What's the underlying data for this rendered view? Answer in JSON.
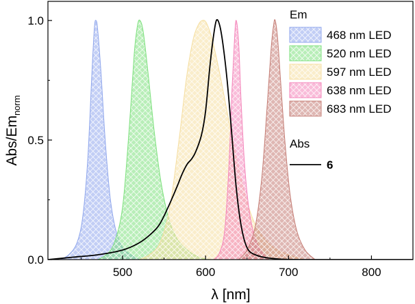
{
  "chart_data": {
    "type": "area",
    "title": "",
    "xlabel": "λ [nm]",
    "ylabel": {
      "main": "Abs/Em",
      "sub": "norm"
    },
    "xlim": [
      410,
      850
    ],
    "ylim": [
      0,
      1.08
    ],
    "xticks": [
      500,
      600,
      700,
      800
    ],
    "xtick_labels": [
      "500",
      "600",
      "700",
      "800"
    ],
    "yticks": [
      0.0,
      0.5,
      1.0
    ],
    "ytick_labels": [
      "0.0",
      "0.5",
      "1.0"
    ],
    "legend": {
      "placement": "top-right",
      "em_title": "Em",
      "abs_title": "Abs",
      "abs_entry": "6"
    },
    "series": [
      {
        "name": "468 nm LED",
        "kind": "emission",
        "color": "#8fa6ec",
        "points": [
          [
            425,
            0.0
          ],
          [
            435,
            0.02
          ],
          [
            445,
            0.07
          ],
          [
            452,
            0.18
          ],
          [
            458,
            0.42
          ],
          [
            463,
            0.78
          ],
          [
            466,
            0.97
          ],
          [
            468,
            1.0
          ],
          [
            470,
            0.96
          ],
          [
            474,
            0.78
          ],
          [
            479,
            0.5
          ],
          [
            485,
            0.26
          ],
          [
            492,
            0.12
          ],
          [
            500,
            0.05
          ],
          [
            510,
            0.02
          ],
          [
            520,
            0.0
          ]
        ]
      },
      {
        "name": "520 nm LED",
        "kind": "emission",
        "color": "#7de07d",
        "points": [
          [
            470,
            0.0
          ],
          [
            480,
            0.02
          ],
          [
            490,
            0.07
          ],
          [
            500,
            0.22
          ],
          [
            508,
            0.55
          ],
          [
            514,
            0.86
          ],
          [
            518,
            0.98
          ],
          [
            521,
            1.0
          ],
          [
            525,
            0.95
          ],
          [
            531,
            0.77
          ],
          [
            538,
            0.54
          ],
          [
            546,
            0.33
          ],
          [
            555,
            0.18
          ],
          [
            565,
            0.09
          ],
          [
            578,
            0.04
          ],
          [
            592,
            0.01
          ],
          [
            605,
            0.0
          ]
        ]
      },
      {
        "name": "597 nm LED",
        "kind": "emission",
        "color": "#f5dea0",
        "points": [
          [
            520,
            0.0
          ],
          [
            532,
            0.02
          ],
          [
            545,
            0.07
          ],
          [
            557,
            0.22
          ],
          [
            568,
            0.5
          ],
          [
            577,
            0.76
          ],
          [
            585,
            0.92
          ],
          [
            591,
            0.98
          ],
          [
            596,
            1.0
          ],
          [
            601,
            0.99
          ],
          [
            608,
            0.92
          ],
          [
            617,
            0.78
          ],
          [
            627,
            0.6
          ],
          [
            637,
            0.43
          ],
          [
            647,
            0.28
          ],
          [
            657,
            0.17
          ],
          [
            668,
            0.1
          ],
          [
            682,
            0.05
          ],
          [
            700,
            0.02
          ],
          [
            720,
            0.0
          ]
        ]
      },
      {
        "name": "638 nm LED",
        "kind": "emission",
        "color": "#f484ba",
        "points": [
          [
            610,
            0.0
          ],
          [
            617,
            0.03
          ],
          [
            623,
            0.12
          ],
          [
            628,
            0.38
          ],
          [
            632,
            0.72
          ],
          [
            635,
            0.93
          ],
          [
            637,
            1.0
          ],
          [
            640,
            0.9
          ],
          [
            643,
            0.65
          ],
          [
            647,
            0.4
          ],
          [
            652,
            0.22
          ],
          [
            658,
            0.11
          ],
          [
            666,
            0.04
          ],
          [
            676,
            0.0
          ]
        ]
      },
      {
        "name": "683 nm LED",
        "kind": "emission",
        "color": "#c47c74",
        "points": [
          [
            640,
            0.0
          ],
          [
            650,
            0.04
          ],
          [
            660,
            0.14
          ],
          [
            668,
            0.35
          ],
          [
            674,
            0.63
          ],
          [
            679,
            0.88
          ],
          [
            682,
            0.98
          ],
          [
            684,
            1.0
          ],
          [
            687,
            0.92
          ],
          [
            691,
            0.72
          ],
          [
            696,
            0.48
          ],
          [
            702,
            0.27
          ],
          [
            710,
            0.12
          ],
          [
            720,
            0.04
          ],
          [
            732,
            0.0
          ]
        ]
      },
      {
        "name": "6",
        "kind": "absorption",
        "color": "#000000",
        "points": [
          [
            410,
            0.0
          ],
          [
            440,
            0.01
          ],
          [
            470,
            0.02
          ],
          [
            500,
            0.04
          ],
          [
            520,
            0.07
          ],
          [
            535,
            0.11
          ],
          [
            545,
            0.15
          ],
          [
            555,
            0.22
          ],
          [
            565,
            0.3
          ],
          [
            572,
            0.36
          ],
          [
            578,
            0.4
          ],
          [
            583,
            0.42
          ],
          [
            588,
            0.45
          ],
          [
            595,
            0.52
          ],
          [
            600,
            0.62
          ],
          [
            605,
            0.8
          ],
          [
            609,
            0.92
          ],
          [
            613,
            1.0
          ],
          [
            617,
            0.98
          ],
          [
            621,
            0.9
          ],
          [
            626,
            0.75
          ],
          [
            631,
            0.55
          ],
          [
            637,
            0.3
          ],
          [
            643,
            0.14
          ],
          [
            650,
            0.05
          ],
          [
            660,
            0.02
          ],
          [
            680,
            0.005
          ],
          [
            720,
            0.0
          ],
          [
            850,
            0.0
          ]
        ]
      }
    ]
  }
}
